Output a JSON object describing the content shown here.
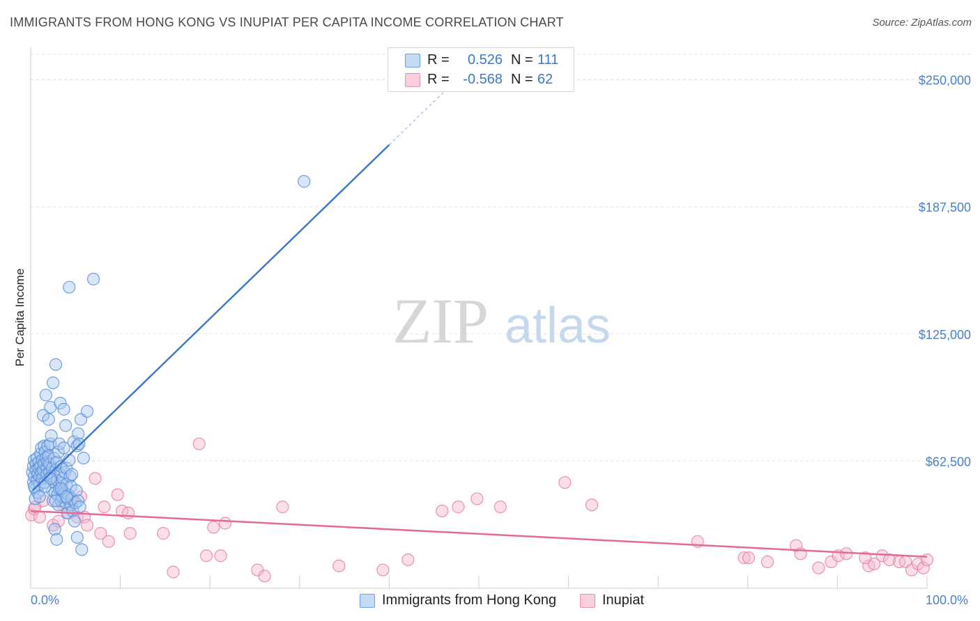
{
  "title": "IMMIGRANTS FROM HONG KONG VS INUPIAT PER CAPITA INCOME CORRELATION CHART",
  "source": "Source: ZipAtlas.com",
  "watermark": {
    "zip": "ZIP",
    "atlas": "atlas"
  },
  "legend": {
    "r_label": "R =",
    "n_label": "N =",
    "rows": [
      {
        "name": "Immigrants from Hong Kong",
        "r": "0.526",
        "n": "111",
        "color": "#a8c8f0",
        "stroke": "#5a8fd8"
      },
      {
        "name": "Inupiat",
        "r": "-0.568",
        "n": "62",
        "color": "#f5b8cc",
        "stroke": "#e87fa0"
      }
    ]
  },
  "chart_data": {
    "type": "scatter",
    "title": "IMMIGRANTS FROM HONG KONG VS INUPIAT PER CAPITA INCOME CORRELATION CHART",
    "xlabel": "",
    "ylabel": "Per Capita Income",
    "xlim": [
      0,
      100
    ],
    "ylim": [
      0,
      262500
    ],
    "x_tick_labels": [
      "0.0%",
      "100.0%"
    ],
    "y_ticks": [
      62500,
      125000,
      187500,
      250000
    ],
    "y_tick_labels": [
      "$62,500",
      "$125,000",
      "$187,500",
      "$250,000"
    ],
    "series": [
      {
        "name": "Immigrants from Hong Kong",
        "color": "#5a8fd8",
        "fill": "#a8c8f0",
        "trend": {
          "x": [
            0.2,
            40.0
          ],
          "y": [
            48000,
            218000
          ],
          "dashed_to": [
            47.5,
            250000
          ]
        },
        "points": [
          [
            0.2,
            57000
          ],
          [
            0.3,
            60000
          ],
          [
            0.3,
            52000
          ],
          [
            0.4,
            63000
          ],
          [
            0.4,
            55000
          ],
          [
            0.5,
            49000
          ],
          [
            0.5,
            44000
          ],
          [
            0.6,
            61000
          ],
          [
            0.6,
            58000
          ],
          [
            0.7,
            64000
          ],
          [
            0.7,
            53000
          ],
          [
            0.8,
            56000
          ],
          [
            0.8,
            47000
          ],
          [
            0.9,
            62000
          ],
          [
            0.9,
            59000
          ],
          [
            1.0,
            55000
          ],
          [
            1.0,
            51000
          ],
          [
            1.1,
            66000
          ],
          [
            1.1,
            60000
          ],
          [
            1.2,
            57000
          ],
          [
            1.2,
            69000
          ],
          [
            1.3,
            63000
          ],
          [
            1.3,
            54000
          ],
          [
            1.4,
            58000
          ],
          [
            1.4,
            85000
          ],
          [
            1.5,
            61000
          ],
          [
            1.5,
            70000
          ],
          [
            1.6,
            67000
          ],
          [
            1.6,
            52000
          ],
          [
            1.7,
            64000
          ],
          [
            1.7,
            95000
          ],
          [
            1.8,
            59000
          ],
          [
            1.8,
            56000
          ],
          [
            1.9,
            70000
          ],
          [
            1.9,
            62000
          ],
          [
            2.0,
            83000
          ],
          [
            2.0,
            65000
          ],
          [
            2.1,
            57000
          ],
          [
            2.1,
            61000
          ],
          [
            2.2,
            71000
          ],
          [
            2.2,
            89000
          ],
          [
            2.3,
            75000
          ],
          [
            2.3,
            55000
          ],
          [
            2.4,
            59000
          ],
          [
            2.4,
            48000
          ],
          [
            2.5,
            43000
          ],
          [
            2.5,
            101000
          ],
          [
            2.6,
            52000
          ],
          [
            2.6,
            64000
          ],
          [
            2.7,
            47000
          ],
          [
            2.7,
            29000
          ],
          [
            2.8,
            58000
          ],
          [
            2.8,
            110000
          ],
          [
            2.9,
            24000
          ],
          [
            2.9,
            62000
          ],
          [
            3.0,
            46000
          ],
          [
            3.0,
            53000
          ],
          [
            3.1,
            41000
          ],
          [
            3.1,
            67000
          ],
          [
            3.2,
            71000
          ],
          [
            3.2,
            49000
          ],
          [
            3.3,
            56000
          ],
          [
            3.3,
            91000
          ],
          [
            3.4,
            43000
          ],
          [
            3.4,
            60000
          ],
          [
            3.5,
            52000
          ],
          [
            3.5,
            45000
          ],
          [
            3.6,
            48000
          ],
          [
            3.6,
            54000
          ],
          [
            3.7,
            69000
          ],
          [
            3.7,
            88000
          ],
          [
            3.8,
            57000
          ],
          [
            3.8,
            47000
          ],
          [
            3.9,
            42000
          ],
          [
            3.9,
            80000
          ],
          [
            4.0,
            51000
          ],
          [
            4.0,
            59000
          ],
          [
            4.1,
            44000
          ],
          [
            4.1,
            37000
          ],
          [
            4.2,
            46000
          ],
          [
            4.3,
            148000
          ],
          [
            4.3,
            63000
          ],
          [
            4.4,
            55000
          ],
          [
            4.5,
            41000
          ],
          [
            4.5,
            50000
          ],
          [
            4.6,
            44000
          ],
          [
            4.7,
            38000
          ],
          [
            4.8,
            72000
          ],
          [
            4.9,
            33000
          ],
          [
            5.0,
            42000
          ],
          [
            5.1,
            48000
          ],
          [
            5.2,
            70000
          ],
          [
            5.2,
            25000
          ],
          [
            5.3,
            76000
          ],
          [
            5.3,
            43000
          ],
          [
            5.4,
            71000
          ],
          [
            5.5,
            40000
          ],
          [
            5.6,
            83000
          ],
          [
            5.7,
            19000
          ],
          [
            5.9,
            64000
          ],
          [
            6.3,
            87000
          ],
          [
            7.0,
            152000
          ],
          [
            30.5,
            200000
          ],
          [
            0.4,
            50000
          ],
          [
            1.0,
            45000
          ],
          [
            1.6,
            50000
          ],
          [
            2.2,
            54000
          ],
          [
            2.8,
            43000
          ],
          [
            3.4,
            49000
          ],
          [
            4.0,
            45000
          ],
          [
            4.6,
            56000
          ]
        ]
      },
      {
        "name": "Inupiat",
        "color": "#e87fa0",
        "fill": "#f5b8cc",
        "trend": {
          "x": [
            0.0,
            100.0
          ],
          "y": [
            38000,
            15500
          ]
        },
        "points": [
          [
            0.1,
            36000
          ],
          [
            0.4,
            39000
          ],
          [
            0.5,
            40000
          ],
          [
            1.0,
            35000
          ],
          [
            1.4,
            43000
          ],
          [
            2.5,
            31000
          ],
          [
            3.1,
            33000
          ],
          [
            3.6,
            41000
          ],
          [
            4.2,
            37000
          ],
          [
            4.7,
            43000
          ],
          [
            5.2,
            35000
          ],
          [
            5.6,
            45000
          ],
          [
            6.0,
            35000
          ],
          [
            6.3,
            31000
          ],
          [
            7.2,
            54000
          ],
          [
            7.8,
            27000
          ],
          [
            8.2,
            40000
          ],
          [
            8.7,
            23000
          ],
          [
            9.7,
            46000
          ],
          [
            10.2,
            38000
          ],
          [
            10.9,
            37000
          ],
          [
            11.1,
            27000
          ],
          [
            14.8,
            27000
          ],
          [
            15.9,
            8000
          ],
          [
            18.8,
            71000
          ],
          [
            19.6,
            16000
          ],
          [
            20.4,
            30000
          ],
          [
            21.2,
            16000
          ],
          [
            21.7,
            32000
          ],
          [
            25.3,
            9000
          ],
          [
            26.1,
            6000
          ],
          [
            28.1,
            40000
          ],
          [
            34.4,
            11000
          ],
          [
            39.3,
            9000
          ],
          [
            42.1,
            14000
          ],
          [
            45.9,
            38000
          ],
          [
            47.7,
            40000
          ],
          [
            49.8,
            44000
          ],
          [
            52.4,
            40000
          ],
          [
            59.6,
            52000
          ],
          [
            62.6,
            41000
          ],
          [
            74.4,
            23000
          ],
          [
            79.6,
            15000
          ],
          [
            80.1,
            15000
          ],
          [
            82.2,
            13000
          ],
          [
            85.4,
            21000
          ],
          [
            85.9,
            17000
          ],
          [
            87.9,
            10000
          ],
          [
            89.3,
            13000
          ],
          [
            90.1,
            16000
          ],
          [
            91.0,
            17000
          ],
          [
            93.5,
            11000
          ],
          [
            94.1,
            12000
          ],
          [
            95.0,
            16000
          ],
          [
            95.8,
            14000
          ],
          [
            96.9,
            13000
          ],
          [
            97.6,
            13000
          ],
          [
            98.3,
            9000
          ],
          [
            99.0,
            12000
          ],
          [
            99.6,
            10000
          ],
          [
            100.0,
            14000
          ],
          [
            93.1,
            15000
          ]
        ]
      }
    ]
  }
}
